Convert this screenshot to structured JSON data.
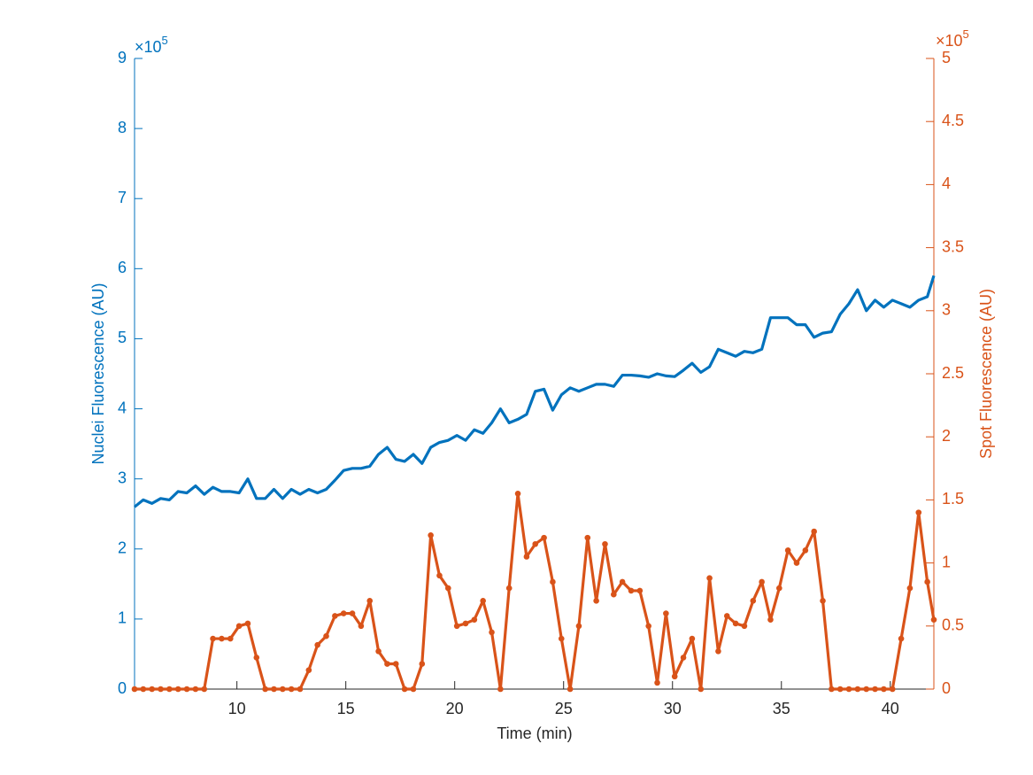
{
  "chart_data": {
    "type": "line",
    "xlabel": "Time (min)",
    "ylabel": "Nuclei Fluorescence (AU)",
    "y2label": "Spot Fluorescence (AU)",
    "y_exponent": {
      "base": "×10",
      "power": "5"
    },
    "y2_exponent": {
      "base": "×10",
      "power": "5"
    },
    "xlim": [
      5.3,
      42.0
    ],
    "xticks": [
      10,
      15,
      20,
      25,
      30,
      35,
      40
    ],
    "ylim": [
      0,
      9
    ],
    "yticks": [
      0,
      1,
      2,
      3,
      4,
      5,
      6,
      7,
      8,
      9
    ],
    "y2lim": [
      0,
      5
    ],
    "y2ticks": [
      0,
      0.5,
      1,
      1.5,
      2,
      2.5,
      3,
      3.5,
      4,
      4.5,
      5
    ],
    "x": [
      5.3,
      5.7,
      6.1,
      6.5,
      6.9,
      7.3,
      7.7,
      8.1,
      8.5,
      8.9,
      9.3,
      9.7,
      10.1,
      10.5,
      10.9,
      11.3,
      11.7,
      12.1,
      12.5,
      12.9,
      13.3,
      13.7,
      14.1,
      14.5,
      14.9,
      15.3,
      15.7,
      16.1,
      16.5,
      16.9,
      17.3,
      17.7,
      18.1,
      18.5,
      18.9,
      19.3,
      19.7,
      20.1,
      20.5,
      20.9,
      21.3,
      21.7,
      22.1,
      22.5,
      22.9,
      23.3,
      23.7,
      24.1,
      24.5,
      24.9,
      25.3,
      25.7,
      26.1,
      26.5,
      26.9,
      27.3,
      27.7,
      28.1,
      28.5,
      28.9,
      29.3,
      29.7,
      30.1,
      30.5,
      30.9,
      31.3,
      31.7,
      32.1,
      32.5,
      32.9,
      33.3,
      33.7,
      34.1,
      34.5,
      34.9,
      35.3,
      35.7,
      36.1,
      36.5,
      36.9,
      37.3,
      37.7,
      38.1,
      38.5,
      38.9,
      39.3,
      39.7,
      40.1,
      40.5,
      40.9,
      41.3,
      41.7,
      42.0
    ],
    "series": [
      {
        "name": "Nuclei Fluorescence",
        "color": "#0072BD",
        "axis": "y",
        "marker": false,
        "values": [
          2.6,
          2.7,
          2.65,
          2.72,
          2.7,
          2.82,
          2.8,
          2.9,
          2.78,
          2.88,
          2.82,
          2.82,
          2.8,
          3.0,
          2.72,
          2.72,
          2.85,
          2.72,
          2.85,
          2.78,
          2.85,
          2.8,
          2.85,
          2.98,
          3.12,
          3.15,
          3.15,
          3.18,
          3.35,
          3.45,
          3.28,
          3.25,
          3.35,
          3.22,
          3.45,
          3.52,
          3.55,
          3.62,
          3.55,
          3.7,
          3.65,
          3.8,
          4.0,
          3.8,
          3.85,
          3.92,
          4.25,
          4.28,
          3.98,
          4.2,
          4.3,
          4.25,
          4.3,
          4.35,
          4.35,
          4.32,
          4.48,
          4.48,
          4.47,
          4.45,
          4.5,
          4.47,
          4.46,
          4.55,
          4.65,
          4.52,
          4.6,
          4.85,
          4.8,
          4.75,
          4.82,
          4.8,
          4.85,
          5.3,
          5.3,
          5.3,
          5.2,
          5.2,
          5.02,
          5.08,
          5.1,
          5.35,
          5.5,
          5.7,
          5.4,
          5.55,
          5.45,
          5.55,
          5.5,
          5.45,
          5.55,
          5.6,
          5.9
        ]
      },
      {
        "name": "Spot Fluorescence",
        "color": "#D95319",
        "axis": "y2",
        "marker": true,
        "values": [
          0,
          0,
          0,
          0,
          0,
          0,
          0,
          0,
          0,
          0.4,
          0.4,
          0.4,
          0.5,
          0.52,
          0.25,
          0,
          0,
          0,
          0,
          0,
          0.15,
          0.35,
          0.42,
          0.58,
          0.6,
          0.6,
          0.5,
          0.7,
          0.3,
          0.2,
          0.2,
          0,
          0,
          0.2,
          1.22,
          0.9,
          0.8,
          0.5,
          0.52,
          0.55,
          0.7,
          0.45,
          0,
          0.8,
          1.55,
          1.05,
          1.15,
          1.2,
          0.85,
          0.4,
          0,
          0.5,
          1.2,
          0.7,
          1.15,
          0.75,
          0.85,
          0.78,
          0.78,
          0.5,
          0.05,
          0.6,
          0.1,
          0.25,
          0.4,
          0,
          0.88,
          0.3,
          0.58,
          0.52,
          0.5,
          0.7,
          0.85,
          0.55,
          0.8,
          1.1,
          1.0,
          1.1,
          1.25,
          0.7,
          0,
          0,
          0,
          0,
          0,
          0,
          0,
          0,
          0.4,
          0.8,
          1.4,
          0.85,
          0.55
        ]
      }
    ]
  }
}
